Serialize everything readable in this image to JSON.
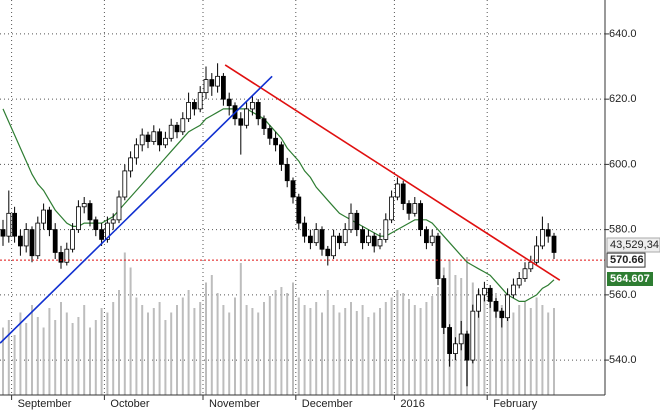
{
  "chart_data": {
    "type": "candlestick",
    "categories": [
      null,
      null,
      "September",
      null,
      null,
      null,
      null,
      null,
      null,
      null,
      null,
      null,
      null,
      null,
      null,
      null,
      null,
      null,
      "October",
      null,
      null,
      null,
      null,
      null,
      null,
      null,
      null,
      null,
      null,
      null,
      null,
      null,
      null,
      null,
      null,
      "November",
      null,
      null,
      null,
      null,
      null,
      null,
      null,
      null,
      null,
      null,
      null,
      null,
      null,
      null,
      null,
      "December",
      null,
      null,
      null,
      null,
      null,
      null,
      null,
      null,
      null,
      null,
      null,
      null,
      null,
      null,
      null,
      null,
      "2016",
      null,
      null,
      null,
      null,
      null,
      null,
      null,
      null,
      null,
      null,
      null,
      null,
      null,
      null,
      null,
      "February",
      null,
      null,
      null,
      null,
      null,
      null,
      null,
      null,
      null,
      null,
      null
    ],
    "ohlc": [
      [
        580,
        583,
        575,
        578
      ],
      [
        578,
        592,
        576,
        585
      ],
      [
        585,
        587,
        576,
        578
      ],
      [
        578,
        580,
        572,
        575
      ],
      [
        575,
        582,
        573,
        580
      ],
      [
        580,
        581,
        570,
        572
      ],
      [
        572,
        584,
        571,
        582
      ],
      [
        582,
        588,
        580,
        586
      ],
      [
        586,
        587,
        578,
        580
      ],
      [
        580,
        582,
        571,
        573
      ],
      [
        573,
        575,
        568,
        570
      ],
      [
        570,
        576,
        569,
        574
      ],
      [
        574,
        582,
        573,
        580
      ],
      [
        580,
        589,
        579,
        587
      ],
      [
        587,
        590,
        585,
        588
      ],
      [
        588,
        589,
        581,
        583
      ],
      [
        583,
        584,
        578,
        580
      ],
      [
        580,
        582,
        575,
        577
      ],
      [
        577,
        584,
        576,
        582
      ],
      [
        582,
        585,
        580,
        583
      ],
      [
        583,
        592,
        582,
        590
      ],
      [
        590,
        600,
        589,
        598
      ],
      [
        598,
        604,
        596,
        602
      ],
      [
        602,
        608,
        600,
        606
      ],
      [
        606,
        611,
        604,
        609
      ],
      [
        609,
        610,
        605,
        607
      ],
      [
        607,
        612,
        606,
        610
      ],
      [
        610,
        611,
        604,
        606
      ],
      [
        606,
        610,
        605,
        608
      ],
      [
        608,
        614,
        607,
        612
      ],
      [
        612,
        613,
        608,
        610
      ],
      [
        610,
        616,
        609,
        614
      ],
      [
        614,
        622,
        613,
        619
      ],
      [
        619,
        620,
        615,
        617
      ],
      [
        617,
        624,
        616,
        622
      ],
      [
        622,
        630,
        620,
        626
      ],
      [
        626,
        628,
        621,
        624
      ],
      [
        624,
        631,
        622,
        627
      ],
      [
        627,
        628,
        618,
        620
      ],
      [
        620,
        622,
        615,
        618
      ],
      [
        618,
        619,
        612,
        614
      ],
      [
        614,
        616,
        603,
        612
      ],
      [
        612,
        619,
        611,
        617
      ],
      [
        617,
        621,
        615,
        619
      ],
      [
        619,
        620,
        612,
        614
      ],
      [
        614,
        615,
        609,
        611
      ],
      [
        611,
        612,
        606,
        608
      ],
      [
        608,
        610,
        604,
        606
      ],
      [
        606,
        607,
        598,
        600
      ],
      [
        600,
        602,
        593,
        595
      ],
      [
        595,
        596,
        588,
        590
      ],
      [
        590,
        591,
        580,
        582
      ],
      [
        582,
        584,
        576,
        578
      ],
      [
        578,
        580,
        574,
        576
      ],
      [
        576,
        582,
        575,
        580
      ],
      [
        580,
        581,
        572,
        574
      ],
      [
        574,
        575,
        569,
        572
      ],
      [
        572,
        580,
        571,
        578
      ],
      [
        578,
        579,
        574,
        576
      ],
      [
        576,
        582,
        575,
        580
      ],
      [
        580,
        588,
        579,
        585
      ],
      [
        585,
        586,
        578,
        580
      ],
      [
        580,
        581,
        574,
        576
      ],
      [
        576,
        580,
        575,
        578
      ],
      [
        578,
        579,
        573,
        575
      ],
      [
        575,
        579,
        574,
        577
      ],
      [
        577,
        585,
        576,
        583
      ],
      [
        583,
        592,
        582,
        590
      ],
      [
        590,
        596,
        589,
        594
      ],
      [
        594,
        595,
        586,
        588
      ],
      [
        588,
        589,
        583,
        585
      ],
      [
        585,
        590,
        584,
        588
      ],
      [
        588,
        589,
        578,
        580
      ],
      [
        580,
        581,
        574,
        576
      ],
      [
        576,
        580,
        575,
        578
      ],
      [
        578,
        579,
        563,
        565
      ],
      [
        565,
        566,
        548,
        550
      ],
      [
        550,
        551,
        538,
        542
      ],
      [
        542,
        547,
        540,
        545
      ],
      [
        545,
        552,
        543,
        548
      ],
      [
        548,
        549,
        532,
        540
      ],
      [
        540,
        557,
        539,
        555
      ],
      [
        555,
        562,
        553,
        560
      ],
      [
        560,
        564,
        558,
        562
      ],
      [
        562,
        563,
        556,
        558
      ],
      [
        558,
        559,
        553,
        555
      ],
      [
        555,
        556,
        550,
        553
      ],
      [
        553,
        562,
        552,
        560
      ],
      [
        560,
        565,
        559,
        563
      ],
      [
        563,
        567,
        562,
        565
      ],
      [
        565,
        570,
        564,
        568
      ],
      [
        568,
        572,
        567,
        570
      ],
      [
        570,
        578,
        569,
        575
      ],
      [
        575,
        584,
        574,
        580
      ],
      [
        580,
        582,
        576,
        578
      ],
      [
        578,
        579,
        571,
        573
      ]
    ],
    "ma": [
      617,
      613,
      609,
      605,
      601,
      597,
      594,
      592,
      589,
      586,
      584,
      582,
      581,
      581,
      582,
      582,
      582,
      582,
      583,
      584,
      586,
      588,
      590,
      592,
      594,
      596,
      598,
      600,
      602,
      604,
      606,
      608,
      610,
      611,
      612,
      614,
      615,
      616,
      617,
      617,
      617,
      617,
      617,
      616,
      615,
      614,
      612,
      610,
      608,
      605,
      603,
      601,
      598,
      596,
      593,
      591,
      589,
      587,
      585,
      584,
      583,
      582,
      581,
      580,
      579,
      578,
      578,
      579,
      580,
      581,
      582,
      583,
      583,
      583,
      582,
      580,
      578,
      576,
      574,
      572,
      570,
      569,
      568,
      567,
      566,
      564,
      562,
      560,
      559,
      558,
      558,
      559,
      560,
      562,
      563,
      564.607
    ],
    "ma_color": "#2e7d32",
    "volume": [
      45,
      50,
      40,
      55,
      48,
      60,
      52,
      45,
      58,
      50,
      62,
      55,
      48,
      52,
      60,
      45,
      50,
      58,
      55,
      62,
      70,
      95,
      85,
      65,
      60,
      55,
      58,
      62,
      50,
      55,
      60,
      65,
      70,
      58,
      62,
      75,
      80,
      68,
      60,
      55,
      65,
      88,
      60,
      58,
      55,
      62,
      66,
      70,
      72,
      68,
      75,
      65,
      60,
      58,
      62,
      55,
      70,
      60,
      55,
      58,
      62,
      56,
      60,
      52,
      55,
      58,
      62,
      65,
      70,
      68,
      64,
      60,
      58,
      62,
      66,
      72,
      85,
      90,
      80,
      78,
      92,
      75,
      70,
      65,
      62,
      68,
      60,
      58,
      55,
      60,
      62,
      58,
      65,
      60,
      55,
      58
    ],
    "vlim": [
      0,
      100
    ],
    "trendlines": [
      {
        "color": "#e01010",
        "points": [
          [
            38.3,
            630.5
          ],
          [
            96,
            564.5
          ]
        ]
      },
      {
        "color": "#1030d0",
        "points": [
          [
            -0.5,
            545.2
          ],
          [
            46.4,
            627
          ]
        ]
      }
    ],
    "level": 570.66,
    "level_color": "#e01010",
    "volume_label": "43,529,34",
    "ma_label": 564.607,
    "ylim": [
      529.3,
      650.4
    ],
    "yticks": [
      {
        "value": 540,
        "label": "540.0"
      },
      {
        "value": 560,
        "label": "560.0"
      },
      {
        "value": 580,
        "label": "580.0"
      },
      {
        "value": 600,
        "label": "600.0"
      },
      {
        "value": 620,
        "label": "620.0"
      },
      {
        "value": 640,
        "label": "640.0"
      }
    ],
    "grid": true
  }
}
